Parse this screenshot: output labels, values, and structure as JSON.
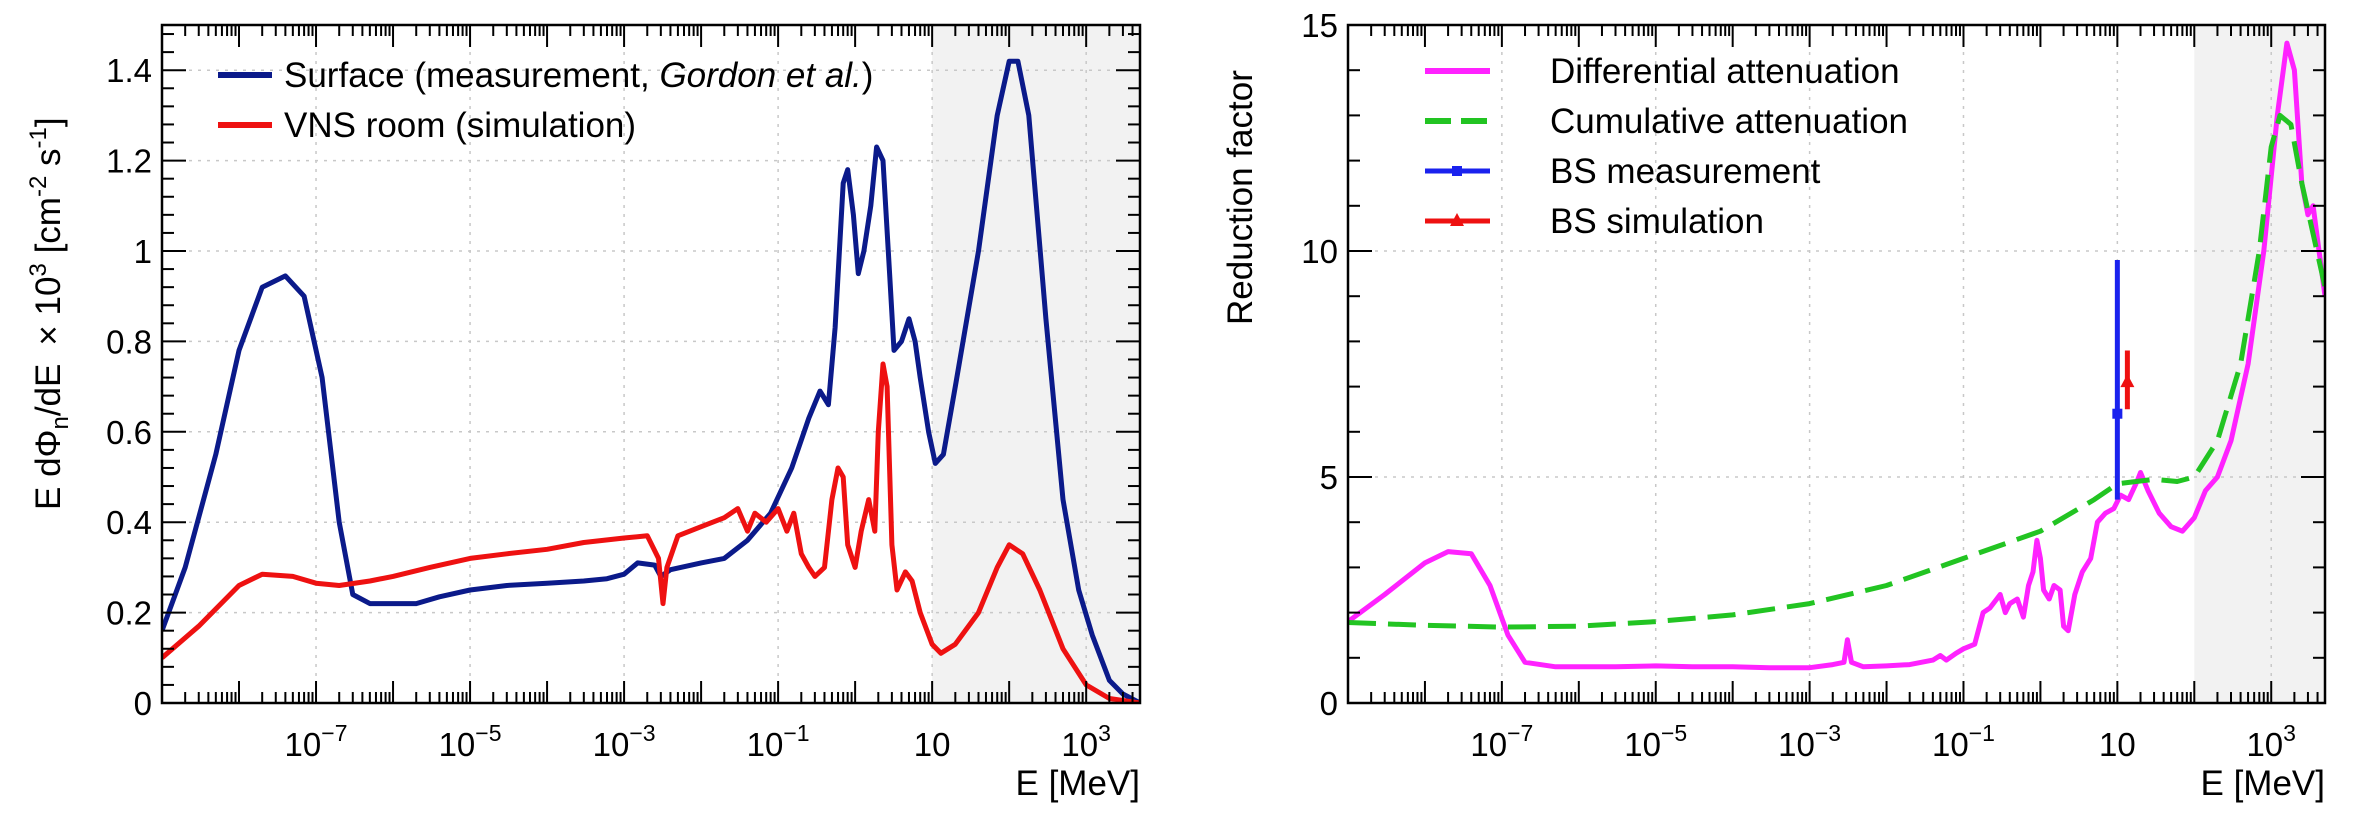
{
  "chart_data": [
    {
      "type": "line",
      "xlabel": "E [MeV]",
      "ylabel": "E dΦn/dE",
      "ylabel_unit": "× 10³ [cm⁻² s⁻¹]",
      "ylabel_base": "E dΦ",
      "ylabel_sub": "n",
      "ylabel_tail": "/dE",
      "ylabel_scale": "× 10",
      "ylabel_exp": "3",
      "ylabel_units_a": " [cm",
      "ylabel_units_b": "-2",
      "ylabel_units_c": " s",
      "ylabel_units_d": "-1",
      "ylabel_units_e": "]",
      "xscale": "log",
      "xlim": [
        1e-09,
        5000
      ],
      "ylim": [
        0,
        1.5
      ],
      "xticklabels": [
        {
          "base": "10",
          "exp": "−7",
          "value": 1e-07
        },
        {
          "base": "10",
          "exp": "−5",
          "value": 1e-05
        },
        {
          "base": "10",
          "exp": "−3",
          "value": 0.001
        },
        {
          "base": "10",
          "exp": "−1",
          "value": 0.1
        },
        {
          "base": "10",
          "exp": "",
          "value": 10
        },
        {
          "base": "10",
          "exp": "3",
          "value": 1000
        }
      ],
      "yticklabels": [
        "0",
        "0.2",
        "0.4",
        "0.6",
        "0.8",
        "1",
        "1.2",
        "1.4"
      ],
      "yticks": [
        0,
        0.2,
        0.4,
        0.6,
        0.8,
        1.0,
        1.2,
        1.4
      ],
      "grid": true,
      "shaded_region": {
        "x_from": 10,
        "x_to": 5000,
        "color": "#f2f2f2"
      },
      "legend": {
        "position": "top-left",
        "entries": [
          {
            "text_pre": "Surface (measurement, ",
            "text_italic": "Gordon et al.",
            "text_post": ")",
            "color": "#0b1a8a"
          },
          {
            "text_pre": "VNS room (simulation)",
            "text_italic": "",
            "text_post": "",
            "color": "#ee1111"
          }
        ]
      },
      "series": [
        {
          "name": "Surface (measurement, Gordon et al.)",
          "color": "#0b1a8a",
          "points": [
            [
              1e-09,
              0.16
            ],
            [
              2e-09,
              0.3
            ],
            [
              5e-09,
              0.55
            ],
            [
              1e-08,
              0.78
            ],
            [
              2e-08,
              0.92
            ],
            [
              4e-08,
              0.945
            ],
            [
              7e-08,
              0.9
            ],
            [
              1.2e-07,
              0.72
            ],
            [
              2e-07,
              0.4
            ],
            [
              3e-07,
              0.24
            ],
            [
              5e-07,
              0.22
            ],
            [
              1e-06,
              0.22
            ],
            [
              2e-06,
              0.22
            ],
            [
              4e-06,
              0.235
            ],
            [
              1e-05,
              0.25
            ],
            [
              3e-05,
              0.26
            ],
            [
              0.0001,
              0.265
            ],
            [
              0.0003,
              0.27
            ],
            [
              0.0006,
              0.275
            ],
            [
              0.001,
              0.285
            ],
            [
              0.0015,
              0.31
            ],
            [
              0.0025,
              0.305
            ],
            [
              0.003,
              0.28
            ],
            [
              0.004,
              0.295
            ],
            [
              0.01,
              0.31
            ],
            [
              0.02,
              0.32
            ],
            [
              0.04,
              0.36
            ],
            [
              0.08,
              0.42
            ],
            [
              0.15,
              0.52
            ],
            [
              0.25,
              0.63
            ],
            [
              0.35,
              0.69
            ],
            [
              0.45,
              0.66
            ],
            [
              0.55,
              0.83
            ],
            [
              0.7,
              1.15
            ],
            [
              0.8,
              1.18
            ],
            [
              0.95,
              1.08
            ],
            [
              1.1,
              0.95
            ],
            [
              1.3,
              1.0
            ],
            [
              1.6,
              1.1
            ],
            [
              1.9,
              1.23
            ],
            [
              2.3,
              1.2
            ],
            [
              2.8,
              0.95
            ],
            [
              3.2,
              0.78
            ],
            [
              4,
              0.8
            ],
            [
              5,
              0.85
            ],
            [
              6,
              0.8
            ],
            [
              7,
              0.72
            ],
            [
              9,
              0.6
            ],
            [
              11,
              0.53
            ],
            [
              14,
              0.55
            ],
            [
              20,
              0.7
            ],
            [
              40,
              1.0
            ],
            [
              70,
              1.3
            ],
            [
              100,
              1.42
            ],
            [
              130,
              1.42
            ],
            [
              180,
              1.3
            ],
            [
              300,
              0.85
            ],
            [
              500,
              0.45
            ],
            [
              800,
              0.25
            ],
            [
              1200,
              0.15
            ],
            [
              2000,
              0.05
            ],
            [
              3000,
              0.02
            ],
            [
              5000,
              0.0
            ]
          ]
        },
        {
          "name": "VNS room (simulation)",
          "color": "#ee1111",
          "points": [
            [
              1e-09,
              0.1
            ],
            [
              3e-09,
              0.17
            ],
            [
              1e-08,
              0.26
            ],
            [
              2e-08,
              0.285
            ],
            [
              5e-08,
              0.28
            ],
            [
              1e-07,
              0.265
            ],
            [
              2e-07,
              0.26
            ],
            [
              5e-07,
              0.27
            ],
            [
              1e-06,
              0.28
            ],
            [
              3e-06,
              0.3
            ],
            [
              1e-05,
              0.32
            ],
            [
              3e-05,
              0.33
            ],
            [
              0.0001,
              0.34
            ],
            [
              0.0003,
              0.355
            ],
            [
              0.001,
              0.365
            ],
            [
              0.002,
              0.37
            ],
            [
              0.0028,
              0.32
            ],
            [
              0.0032,
              0.22
            ],
            [
              0.0036,
              0.3
            ],
            [
              0.005,
              0.37
            ],
            [
              0.01,
              0.39
            ],
            [
              0.02,
              0.41
            ],
            [
              0.03,
              0.43
            ],
            [
              0.04,
              0.38
            ],
            [
              0.05,
              0.42
            ],
            [
              0.07,
              0.4
            ],
            [
              0.1,
              0.43
            ],
            [
              0.13,
              0.38
            ],
            [
              0.16,
              0.42
            ],
            [
              0.2,
              0.33
            ],
            [
              0.25,
              0.3
            ],
            [
              0.3,
              0.28
            ],
            [
              0.4,
              0.3
            ],
            [
              0.5,
              0.45
            ],
            [
              0.6,
              0.52
            ],
            [
              0.7,
              0.5
            ],
            [
              0.8,
              0.35
            ],
            [
              1.0,
              0.3
            ],
            [
              1.2,
              0.38
            ],
            [
              1.5,
              0.45
            ],
            [
              1.8,
              0.38
            ],
            [
              2.0,
              0.6
            ],
            [
              2.3,
              0.75
            ],
            [
              2.6,
              0.7
            ],
            [
              3.0,
              0.35
            ],
            [
              3.5,
              0.25
            ],
            [
              4.5,
              0.29
            ],
            [
              5.5,
              0.27
            ],
            [
              7,
              0.2
            ],
            [
              10,
              0.13
            ],
            [
              13,
              0.11
            ],
            [
              20,
              0.13
            ],
            [
              40,
              0.2
            ],
            [
              70,
              0.3
            ],
            [
              100,
              0.35
            ],
            [
              150,
              0.33
            ],
            [
              250,
              0.25
            ],
            [
              500,
              0.12
            ],
            [
              1000,
              0.04
            ],
            [
              2000,
              0.01
            ],
            [
              5000,
              0.0
            ]
          ]
        }
      ]
    },
    {
      "type": "line",
      "xlabel": "E [MeV]",
      "ylabel": "Reduction factor",
      "xscale": "log",
      "xlim": [
        1e-09,
        5000
      ],
      "ylim": [
        0,
        15
      ],
      "xticklabels": [
        {
          "base": "10",
          "exp": "−7",
          "value": 1e-07
        },
        {
          "base": "10",
          "exp": "−5",
          "value": 1e-05
        },
        {
          "base": "10",
          "exp": "−3",
          "value": 0.001
        },
        {
          "base": "10",
          "exp": "−1",
          "value": 0.1
        },
        {
          "base": "10",
          "exp": "",
          "value": 10
        },
        {
          "base": "10",
          "exp": "3",
          "value": 1000
        }
      ],
      "yticklabels": [
        "0",
        "5",
        "10",
        "15"
      ],
      "yticks": [
        0,
        5,
        10,
        15
      ],
      "grid": true,
      "shaded_region": {
        "x_from": 100,
        "x_to": 5000,
        "color": "#f2f2f2"
      },
      "legend": {
        "position": "top-left",
        "entries": [
          {
            "text": "Differential attenuation",
            "color": "#ff22ff",
            "style": "solid"
          },
          {
            "text": "Cumulative attenuation",
            "color": "#22c422",
            "style": "dashed"
          },
          {
            "text": "BS measurement",
            "color": "#1a22ee",
            "style": "marker-square"
          },
          {
            "text": "BS simulation",
            "color": "#ee1111",
            "style": "marker-triangle"
          }
        ]
      },
      "series": [
        {
          "name": "Differential attenuation",
          "color": "#ff22ff",
          "points": [
            [
              1e-09,
              1.8
            ],
            [
              3e-09,
              2.4
            ],
            [
              1e-08,
              3.1
            ],
            [
              2e-08,
              3.35
            ],
            [
              4e-08,
              3.3
            ],
            [
              7e-08,
              2.6
            ],
            [
              1.2e-07,
              1.5
            ],
            [
              2e-07,
              0.9
            ],
            [
              5e-07,
              0.8
            ],
            [
              1e-06,
              0.8
            ],
            [
              3e-06,
              0.8
            ],
            [
              1e-05,
              0.82
            ],
            [
              3e-05,
              0.8
            ],
            [
              0.0001,
              0.8
            ],
            [
              0.0003,
              0.78
            ],
            [
              0.001,
              0.78
            ],
            [
              0.002,
              0.85
            ],
            [
              0.0028,
              0.9
            ],
            [
              0.0031,
              1.4
            ],
            [
              0.0035,
              0.9
            ],
            [
              0.005,
              0.8
            ],
            [
              0.01,
              0.82
            ],
            [
              0.02,
              0.85
            ],
            [
              0.04,
              0.95
            ],
            [
              0.05,
              1.05
            ],
            [
              0.06,
              0.95
            ],
            [
              0.08,
              1.1
            ],
            [
              0.1,
              1.2
            ],
            [
              0.14,
              1.3
            ],
            [
              0.18,
              2.0
            ],
            [
              0.22,
              2.1
            ],
            [
              0.3,
              2.4
            ],
            [
              0.35,
              2.0
            ],
            [
              0.4,
              2.2
            ],
            [
              0.5,
              2.3
            ],
            [
              0.6,
              1.9
            ],
            [
              0.7,
              2.6
            ],
            [
              0.8,
              2.9
            ],
            [
              0.9,
              3.6
            ],
            [
              1.0,
              3.2
            ],
            [
              1.1,
              2.5
            ],
            [
              1.3,
              2.3
            ],
            [
              1.5,
              2.6
            ],
            [
              1.8,
              2.5
            ],
            [
              2.0,
              1.7
            ],
            [
              2.3,
              1.6
            ],
            [
              2.8,
              2.4
            ],
            [
              3.5,
              2.9
            ],
            [
              4.5,
              3.2
            ],
            [
              5.5,
              4.0
            ],
            [
              7,
              4.2
            ],
            [
              9,
              4.3
            ],
            [
              11,
              4.6
            ],
            [
              14,
              4.5
            ],
            [
              18,
              4.9
            ],
            [
              20,
              5.1
            ],
            [
              25,
              4.7
            ],
            [
              35,
              4.2
            ],
            [
              50,
              3.9
            ],
            [
              70,
              3.8
            ],
            [
              100,
              4.1
            ],
            [
              140,
              4.7
            ],
            [
              200,
              5.0
            ],
            [
              300,
              5.8
            ],
            [
              500,
              7.5
            ],
            [
              800,
              10.0
            ],
            [
              1200,
              13.0
            ],
            [
              1600,
              14.6
            ],
            [
              2000,
              14.0
            ],
            [
              2500,
              11.5
            ],
            [
              3000,
              10.8
            ],
            [
              3500,
              11.0
            ],
            [
              5000,
              9.0
            ]
          ]
        },
        {
          "name": "Cumulative attenuation",
          "color": "#22c422",
          "points": [
            [
              1e-09,
              1.78
            ],
            [
              1e-08,
              1.72
            ],
            [
              1e-07,
              1.68
            ],
            [
              1e-06,
              1.7
            ],
            [
              1e-05,
              1.8
            ],
            [
              0.0001,
              1.95
            ],
            [
              0.001,
              2.2
            ],
            [
              0.01,
              2.6
            ],
            [
              0.1,
              3.2
            ],
            [
              1,
              3.8
            ],
            [
              5,
              4.5
            ],
            [
              10,
              4.85
            ],
            [
              30,
              4.95
            ],
            [
              60,
              4.9
            ],
            [
              100,
              5.0
            ],
            [
              200,
              5.8
            ],
            [
              400,
              7.5
            ],
            [
              700,
              10.0
            ],
            [
              1000,
              12.3
            ],
            [
              1300,
              13.0
            ],
            [
              1800,
              12.8
            ],
            [
              2500,
              11.5
            ],
            [
              5000,
              9.2
            ]
          ]
        }
      ],
      "points": [
        {
          "name": "BS measurement",
          "color": "#1a22ee",
          "x": 10,
          "y": 6.4,
          "y_low": 4.5,
          "y_high": 9.8
        },
        {
          "name": "BS simulation",
          "color": "#ee1111",
          "x": 13.5,
          "y": 7.1,
          "y_low": 6.5,
          "y_high": 7.8
        }
      ]
    }
  ]
}
